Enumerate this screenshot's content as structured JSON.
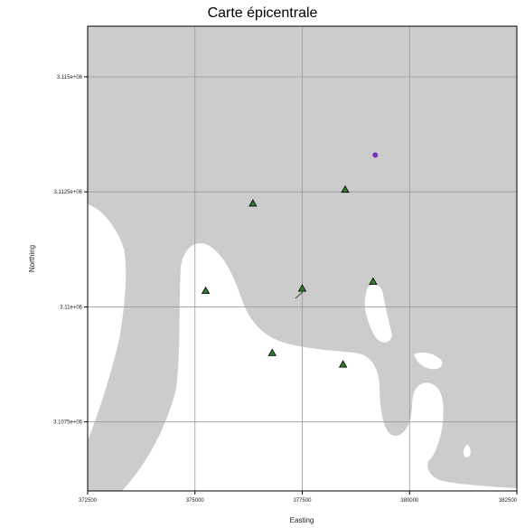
{
  "title": "Carte épicentrale",
  "colors": {
    "land": "#cccccc",
    "water": "#ffffff",
    "grid": "#999999",
    "station_fill": "#2e7d2e",
    "station_outline": "#000000",
    "epicenter": "#7b2fbe",
    "frame": "#000000"
  },
  "axes": {
    "xlabel": "Easting",
    "ylabel": "Northing",
    "x_ticks": [
      "372500",
      "375000",
      "377500",
      "380000",
      "382500"
    ],
    "y_ticks": [
      "3.115e+06",
      "3.1125e+06",
      "3.11e+06",
      "3.1075e+06"
    ]
  },
  "chart_data": {
    "type": "scatter",
    "title": "Carte épicentrale",
    "xlabel": "Easting",
    "ylabel": "Northing",
    "xlim": [
      372500,
      382500
    ],
    "ylim": [
      3106000,
      3116100
    ],
    "grid": true,
    "series": [
      {
        "marker": "triangle",
        "x": [
          375250,
          376350,
          378500,
          377500,
          379150,
          376800,
          378450
        ],
        "y": [
          3110350,
          3112250,
          3112550,
          3110400,
          3110550,
          3109000,
          3108750
        ]
      },
      {
        "marker": "circle",
        "x": [
          379200
        ],
        "y": [
          3113300
        ]
      }
    ]
  }
}
